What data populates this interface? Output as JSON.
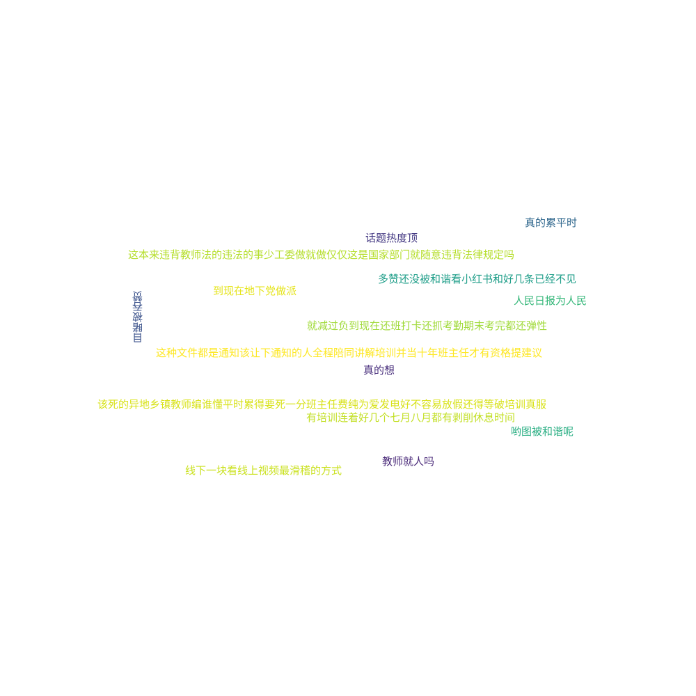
{
  "words": [
    {
      "key": "zhen_lei",
      "text": "真的累平时",
      "color": "#31688e"
    },
    {
      "key": "huati",
      "text": "话题热度顶",
      "color": "#443983"
    },
    {
      "key": "zheben",
      "text": "这本来违背教师法的违法的事少工委做就做仅仅这是国家部门就随意违背法律规定吗",
      "color": "#b5de2b"
    },
    {
      "key": "duozan",
      "text": "多赞还没被和谐看小红书和好几条已经不见",
      "color": "#1f9e89"
    },
    {
      "key": "daoxian",
      "text": "到现在地下党做派",
      "color": "#e5e419"
    },
    {
      "key": "renmin",
      "text": "人民日报为人民",
      "color": "#35b779"
    },
    {
      "key": "mudu",
      "text": "目睹被吞赞",
      "color": "#3b528b"
    },
    {
      "key": "jiujian",
      "text": "就减过负到现在还班打卡还抓考勤期末考完都还弹性",
      "color": "#a0da39"
    },
    {
      "key": "zhezhong",
      "text": "这种文件都是通知该让下通知的人全程陪同讲解培训并当十年班主任才有资格提建议",
      "color": "#fde725"
    },
    {
      "key": "zhende",
      "text": "真的想",
      "color": "#472d7b"
    },
    {
      "key": "gaisi",
      "text": "该死的异地乡镇教师编谁懂平时累得要死一分班主任费纯为爱发电好不容易放假还得等破培训真服",
      "color": "#d8e219"
    },
    {
      "key": "youpeixun",
      "text": "有培训连着好几个七月八月都有剥削休息时间",
      "color": "#c2df23"
    },
    {
      "key": "hetu",
      "text": "哟图被和谐呢",
      "color": "#26ad81"
    },
    {
      "key": "jiaoshi",
      "text": "教师就人吗",
      "color": "#482878"
    },
    {
      "key": "xianxia",
      "text": "线下一块看线上视频最滑稽的方式",
      "color": "#cae11f"
    }
  ]
}
